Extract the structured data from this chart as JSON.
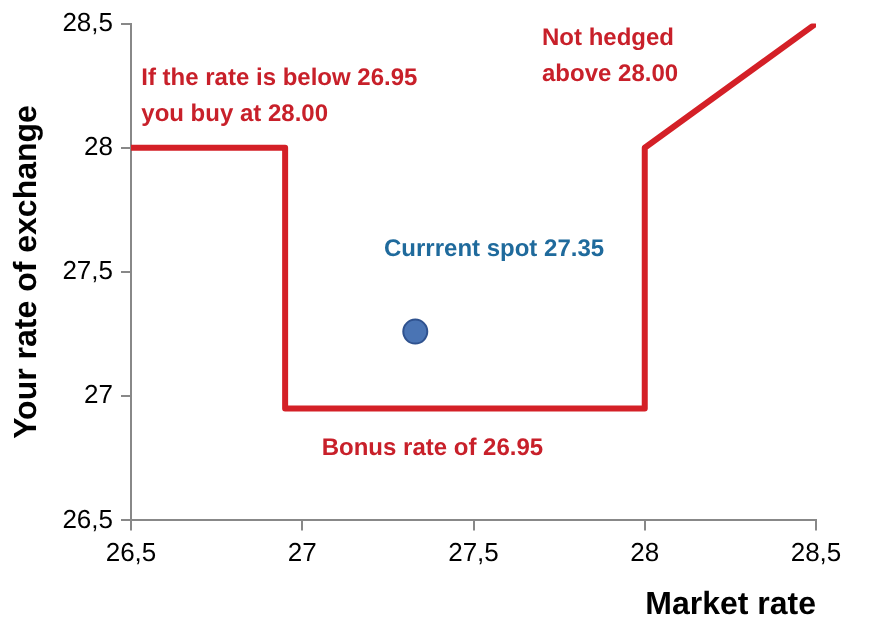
{
  "chart_data": {
    "type": "line",
    "xlabel": "Market rate",
    "ylabel": "Your rate of exchange",
    "xlim": [
      26.5,
      28.5
    ],
    "xticks": [
      {
        "value": 26.5,
        "label": "26,5"
      },
      27,
      {
        "value": 27.5,
        "label": "27,5"
      },
      28,
      {
        "value": 28.5,
        "label": "28,5"
      }
    ],
    "ylim": [
      26.5,
      28.5
    ],
    "yticks": [
      {
        "value": 26.5,
        "label": "26,5"
      },
      27,
      {
        "value": 27.5,
        "label": "27,5"
      },
      28,
      {
        "value": 28.5,
        "label": "28,5"
      }
    ],
    "series": [
      {
        "color": "#d42027",
        "x": [
          26.5,
          26.95,
          26.95,
          28,
          28,
          28.5
        ],
        "values": [
          28,
          28,
          26.95,
          26.95,
          28,
          28.5
        ]
      },
      {
        "type": "scatter",
        "color": "#4a74b4",
        "x": [
          27.33
        ],
        "values": [
          27.26
        ]
      }
    ],
    "annotations": [
      "If the rate is below 26.95\nyou buy at 28.00",
      "Not hedged\nabove 28.00",
      "Bonus rate of 26.95",
      "Currrent spot 27.35"
    ],
    "grid": false,
    "legend": false
  }
}
